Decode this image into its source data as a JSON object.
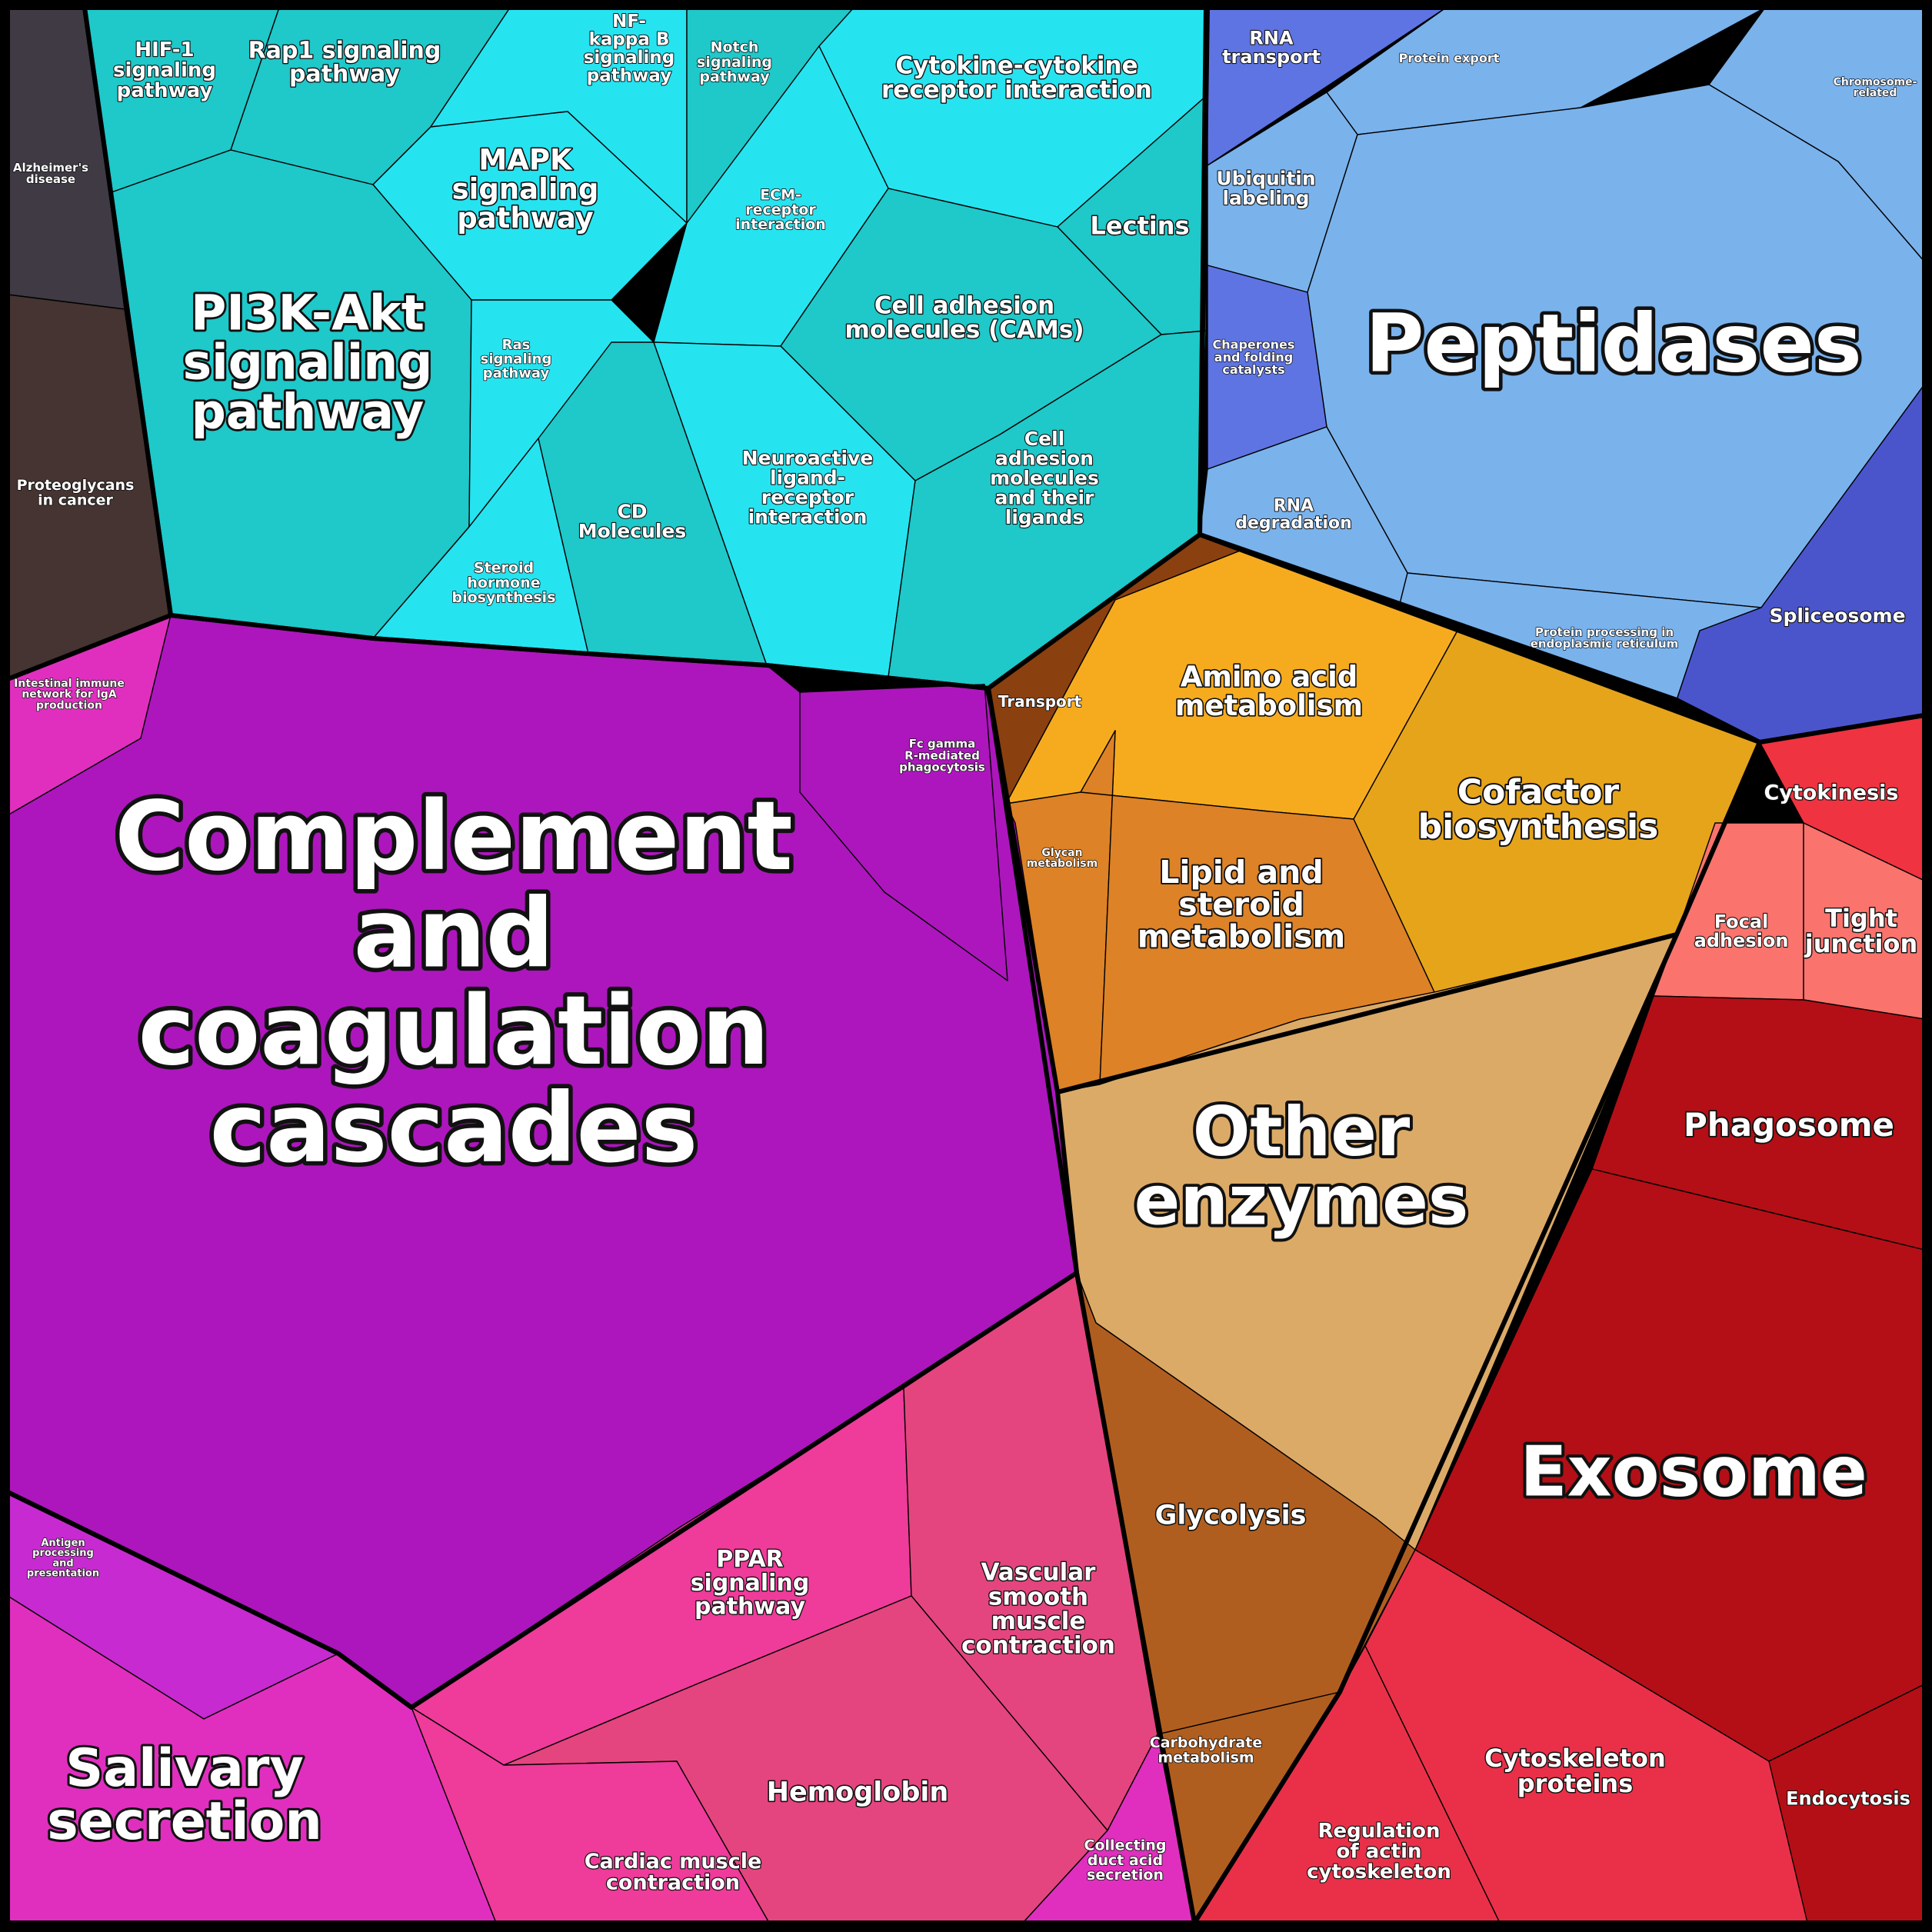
{
  "colors": {
    "cancer_dark": "#3f3a44",
    "cancer_brown": "#453431",
    "signaling_teal": "#1fc8c9",
    "signaling_cyan": "#26e3f0",
    "peptidases_blue": "#7ab2ec",
    "rna_blue": "#5e74e2",
    "spliceosome_blue": "#4a55cc",
    "complement_purple": "#ad16bd",
    "complement_magenta": "#c72ad0",
    "salivary_pink": "#e02fbf",
    "ppar_pink": "#ef3b9a",
    "hemoglobin_pink": "#e4457f",
    "transport_brown": "#8b4010",
    "amino_orange": "#f6ab1f",
    "cofactor_orange": "#e6a41a",
    "lipid_orange": "#dd8226",
    "other_tan": "#dcaa67",
    "glycolysis_brown": "#b05e1f",
    "cytokinesis_red": "#ef3340",
    "focal_salmon": "#fa736d",
    "exosome_red": "#b40f16",
    "cytoskeleton_red": "#ea3049"
  },
  "labels": {
    "alzheimers": "Alzheimer's disease",
    "proteoglycans": "Proteoglycans in cancer",
    "hif1": "HIF-1 signaling pathway",
    "rap1": "Rap1 signaling pathway",
    "nfkb": "NF-kappa B signaling pathway",
    "notch": "Notch signaling pathway",
    "mapk": "MAPK signaling pathway",
    "pi3k": "PI3K-Akt signaling pathway",
    "ras": "Ras signaling pathway",
    "steroid_hormone": "Steroid hormone biosynthesis",
    "cd_molecules": "CD Molecules",
    "cytokine": "Cytokine-cytokine receptor interaction",
    "ecm": "ECM-receptor interaction",
    "lectins": "Lectins",
    "cams": "Cell adhesion molecules (CAMs)",
    "neuroactive": "Neuroactive ligand-receptor interaction",
    "cell_adhesion_ligands": "Cell adhesion molecules and their ligands",
    "rna_transport": "RNA transport",
    "protein_export": "Protein export",
    "chromosome": "Chromosome-related",
    "ubiquitin": "Ubiquitin labeling",
    "peptidases": "Peptidases",
    "chaperones": "Chaperones and folding catalysts",
    "rna_degradation": "RNA degradation",
    "protein_processing": "Protein processing in endoplasmic reticulum",
    "spliceosome": "Spliceosome",
    "intestinal": "Intestinal immune network for IgA production",
    "fc_gamma": "Fc gamma R-mediated phagocytosis",
    "complement": "Complement and coagulation cascades",
    "antigen": "Antigen processing and presentation",
    "salivary": "Salivary secretion",
    "ppar": "PPAR signaling pathway",
    "vascular": "Vascular smooth muscle contraction",
    "hemoglobin": "Hemoglobin",
    "cardiac": "Cardiac muscle contraction",
    "collecting_duct": "Collecting duct acid secretion",
    "transport": "Transport",
    "amino_acid": "Amino acid metabolism",
    "cofactor": "Cofactor biosynthesis",
    "glycan": "Glycan metabolism",
    "lipid": "Lipid and steroid metabolism",
    "other_enzymes": "Other enzymes",
    "glycolysis": "Glycolysis",
    "carbohydrate": "Carbohydrate metabolism",
    "cytokinesis": "Cytokinesis",
    "focal_adhesion": "Focal adhesion",
    "tight_junction": "Tight junction",
    "phagosome": "Phagosome",
    "exosome": "Exosome",
    "cytoskeleton_proteins": "Cytoskeleton proteins",
    "endocytosis": "Endocytosis",
    "regulation_actin": "Regulation of actin cytoskeleton"
  }
}
